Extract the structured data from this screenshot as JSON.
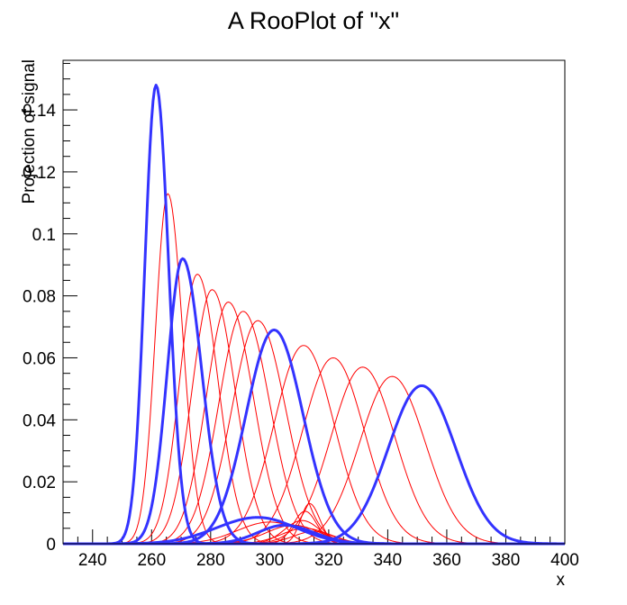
{
  "chart_data": {
    "type": "line",
    "title": "A RooPlot of \"x\"",
    "xlabel": "x",
    "ylabel": "Projection of signal",
    "xlim": [
      230,
      400
    ],
    "ylim": [
      0,
      0.156
    ],
    "x_ticks": [
      240,
      260,
      280,
      300,
      320,
      340,
      360,
      380,
      400
    ],
    "x_tick_labels": [
      "240",
      "260",
      "280",
      "300",
      "320",
      "340",
      "360",
      "380",
      "400"
    ],
    "y_ticks": [
      0,
      0.02,
      0.04,
      0.06,
      0.08,
      0.1,
      0.12,
      0.14
    ],
    "y_tick_labels": [
      "0",
      "0.02",
      "0.04",
      "0.06",
      "0.08",
      "0.1",
      "0.12",
      "0.14"
    ],
    "grid": false,
    "legend": "none",
    "colors": {
      "interpolated": "#ff0000",
      "reference": "#3333ff",
      "axes": "#000000"
    },
    "peak_series": [
      {
        "group": "reference",
        "peak_x": 261.5,
        "peak_y": 0.148,
        "sigma_left": 3.8,
        "sigma_right": 4.3
      },
      {
        "group": "interpolated",
        "peak_x": 265.5,
        "peak_y": 0.113,
        "sigma_left": 4.2,
        "sigma_right": 5.0
      },
      {
        "group": "reference",
        "peak_x": 270.5,
        "peak_y": 0.092,
        "sigma_left": 5.2,
        "sigma_right": 6.5
      },
      {
        "group": "interpolated",
        "peak_x": 275.5,
        "peak_y": 0.087,
        "sigma_left": 6.0,
        "sigma_right": 7.0
      },
      {
        "group": "interpolated",
        "peak_x": 280.5,
        "peak_y": 0.082,
        "sigma_left": 6.8,
        "sigma_right": 7.8
      },
      {
        "group": "interpolated",
        "peak_x": 286.0,
        "peak_y": 0.078,
        "sigma_left": 7.5,
        "sigma_right": 8.5
      },
      {
        "group": "interpolated",
        "peak_x": 291.0,
        "peak_y": 0.075,
        "sigma_left": 8.2,
        "sigma_right": 9.0
      },
      {
        "group": "interpolated",
        "peak_x": 296.0,
        "peak_y": 0.072,
        "sigma_left": 8.8,
        "sigma_right": 9.4
      },
      {
        "group": "reference",
        "peak_x": 301.5,
        "peak_y": 0.069,
        "sigma_left": 9.5,
        "sigma_right": 9.8
      },
      {
        "group": "interpolated",
        "peak_x": 311.5,
        "peak_y": 0.064,
        "sigma_left": 10.0,
        "sigma_right": 10.3
      },
      {
        "group": "interpolated",
        "peak_x": 321.5,
        "peak_y": 0.06,
        "sigma_left": 10.4,
        "sigma_right": 10.6
      },
      {
        "group": "interpolated",
        "peak_x": 331.5,
        "peak_y": 0.057,
        "sigma_left": 10.7,
        "sigma_right": 10.9
      },
      {
        "group": "interpolated",
        "peak_x": 341.5,
        "peak_y": 0.054,
        "sigma_left": 11.0,
        "sigma_right": 11.2
      },
      {
        "group": "reference",
        "peak_x": 351.5,
        "peak_y": 0.051,
        "sigma_left": 11.3,
        "sigma_right": 11.5
      }
    ],
    "low_bump_series": [
      {
        "group": "reference",
        "peak_x": 296.0,
        "peak_y": 0.0085,
        "sigma_left": 14.0,
        "sigma_right": 13.0
      },
      {
        "group": "reference",
        "peak_x": 305.0,
        "peak_y": 0.006,
        "sigma_left": 9.0,
        "sigma_right": 10.0
      },
      {
        "group": "interpolated",
        "peak_x": 300.0,
        "peak_y": 0.007,
        "sigma_left": 11.0,
        "sigma_right": 11.0
      },
      {
        "group": "interpolated",
        "peak_x": 308.0,
        "peak_y": 0.006,
        "sigma_left": 9.0,
        "sigma_right": 9.0
      },
      {
        "group": "interpolated",
        "peak_x": 311.0,
        "peak_y": 0.0075,
        "sigma_left": 6.0,
        "sigma_right": 6.0
      },
      {
        "group": "interpolated",
        "peak_x": 312.0,
        "peak_y": 0.0105,
        "sigma_left": 4.0,
        "sigma_right": 4.0
      },
      {
        "group": "interpolated",
        "peak_x": 313.5,
        "peak_y": 0.013,
        "sigma_left": 3.0,
        "sigma_right": 3.5
      },
      {
        "group": "interpolated",
        "peak_x": 312.0,
        "peak_y": 0.005,
        "sigma_left": 8.0,
        "sigma_right": 8.0
      },
      {
        "group": "interpolated",
        "peak_x": 315.0,
        "peak_y": 0.004,
        "sigma_left": 7.0,
        "sigma_right": 7.0
      }
    ]
  }
}
